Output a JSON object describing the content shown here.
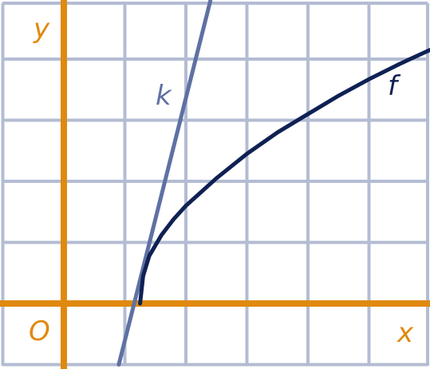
{
  "chart_data": {
    "type": "line",
    "x_axis_label": "x",
    "y_axis_label": "y",
    "origin_label": "O",
    "xlim": [
      -1,
      6
    ],
    "ylim": [
      -1,
      5
    ],
    "grid": true,
    "colors": {
      "grid": "#b3bcd2",
      "axes": "#e0890f",
      "axis_labels": "#e0890f",
      "series_f": "#0f2153",
      "series_k": "#5f71a3"
    },
    "series": [
      {
        "name": "f",
        "points": [
          [
            1.25,
            0
          ],
          [
            1.3,
            0.45
          ],
          [
            1.4,
            0.78
          ],
          [
            1.6,
            1.12
          ],
          [
            1.8,
            1.38
          ],
          [
            2.0,
            1.6
          ],
          [
            2.5,
            2.05
          ],
          [
            3.0,
            2.45
          ],
          [
            3.5,
            2.8
          ],
          [
            4.0,
            3.1
          ],
          [
            4.5,
            3.4
          ],
          [
            5.0,
            3.67
          ],
          [
            5.5,
            3.92
          ],
          [
            6.0,
            4.15
          ]
        ]
      },
      {
        "name": "k",
        "points": [
          [
            0.9,
            -1.0
          ],
          [
            2.4,
            4.95
          ]
        ]
      }
    ]
  }
}
